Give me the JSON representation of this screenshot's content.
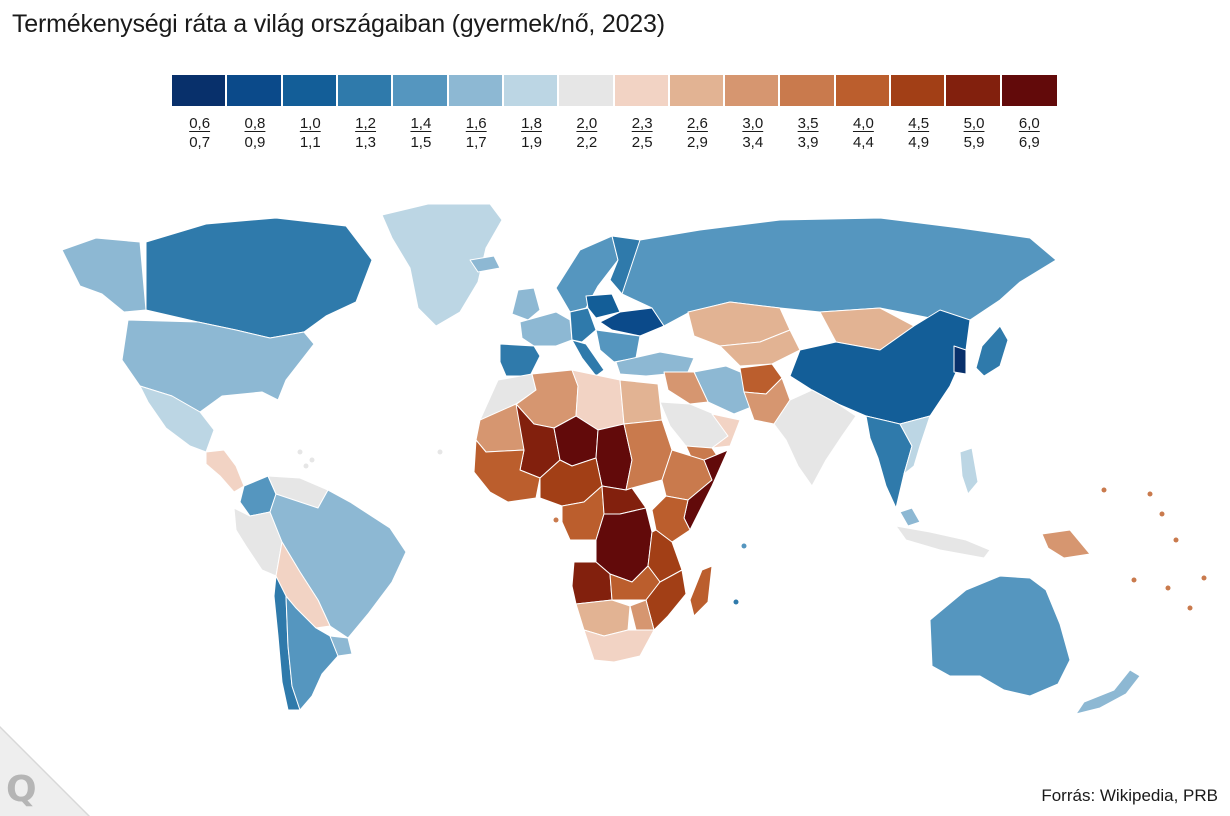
{
  "title": "Termékenységi ráta a világ országaiban (gyermek/nő, 2023)",
  "source": "Forrás: Wikipedia, PRB",
  "brand_letter": "Q",
  "legend": [
    {
      "low": "0,6",
      "high": "0,7",
      "color": "#08306b"
    },
    {
      "low": "0,8",
      "high": "0,9",
      "color": "#0b4a8a"
    },
    {
      "low": "1,0",
      "high": "1,1",
      "color": "#135e98"
    },
    {
      "low": "1,2",
      "high": "1,3",
      "color": "#2f7aab"
    },
    {
      "low": "1,4",
      "high": "1,5",
      "color": "#5596bf"
    },
    {
      "low": "1,6",
      "high": "1,7",
      "color": "#8db8d3"
    },
    {
      "low": "1,8",
      "high": "1,9",
      "color": "#bcd6e4"
    },
    {
      "low": "2,0",
      "high": "2,2",
      "color": "#e6e6e6"
    },
    {
      "low": "2,3",
      "high": "2,5",
      "color": "#f2d3c4"
    },
    {
      "low": "2,6",
      "high": "2,9",
      "color": "#e2b393"
    },
    {
      "low": "3,0",
      "high": "3,4",
      "color": "#d69670"
    },
    {
      "low": "3,5",
      "high": "3,9",
      "color": "#c97a4d"
    },
    {
      "low": "4,0",
      "high": "4,4",
      "color": "#bb5e2d"
    },
    {
      "low": "4,5",
      "high": "4,9",
      "color": "#a23f16"
    },
    {
      "low": "5,0",
      "high": "5,9",
      "color": "#82200d"
    },
    {
      "low": "6,0",
      "high": "6,9",
      "color": "#620a0a"
    }
  ],
  "regions": [
    {
      "name": "Greenland",
      "bin": 6
    },
    {
      "name": "Alaska",
      "bin": 5
    },
    {
      "name": "Canada",
      "bin": 3
    },
    {
      "name": "United States",
      "bin": 5
    },
    {
      "name": "Mexico",
      "bin": 6
    },
    {
      "name": "Central America",
      "bin": 8
    },
    {
      "name": "Colombia",
      "bin": 4
    },
    {
      "name": "Venezuela",
      "bin": 7
    },
    {
      "name": "Ecuador and Peru",
      "bin": 7
    },
    {
      "name": "Brazil",
      "bin": 5
    },
    {
      "name": "Bolivia and Paraguay",
      "bin": 8
    },
    {
      "name": "Chile",
      "bin": 3
    },
    {
      "name": "Argentina",
      "bin": 4
    },
    {
      "name": "Uruguay",
      "bin": 5
    },
    {
      "name": "Iceland",
      "bin": 5
    },
    {
      "name": "Scandinavia",
      "bin": 4
    },
    {
      "name": "Finland",
      "bin": 3
    },
    {
      "name": "United Kingdom and Ireland",
      "bin": 5
    },
    {
      "name": "Western Europe",
      "bin": 5
    },
    {
      "name": "Iberia",
      "bin": 3
    },
    {
      "name": "Central Europe",
      "bin": 3
    },
    {
      "name": "Poland",
      "bin": 2
    },
    {
      "name": "Ukraine",
      "bin": 1
    },
    {
      "name": "Italy",
      "bin": 3
    },
    {
      "name": "Balkans",
      "bin": 4
    },
    {
      "name": "Turkey",
      "bin": 5
    },
    {
      "name": "Russia",
      "bin": 4
    },
    {
      "name": "Kazakhstan",
      "bin": 9
    },
    {
      "name": "Mongolia",
      "bin": 9
    },
    {
      "name": "Central Asia",
      "bin": 9
    },
    {
      "name": "China",
      "bin": 2
    },
    {
      "name": "Korea",
      "bin": 0
    },
    {
      "name": "Japan",
      "bin": 3
    },
    {
      "name": "Iran",
      "bin": 5
    },
    {
      "name": "Iraq and Syria",
      "bin": 10
    },
    {
      "name": "Saudi Arabia",
      "bin": 7
    },
    {
      "name": "Yemen",
      "bin": 11
    },
    {
      "name": "Oman",
      "bin": 8
    },
    {
      "name": "Afghanistan",
      "bin": 12
    },
    {
      "name": "Pakistan",
      "bin": 10
    },
    {
      "name": "India",
      "bin": 7
    },
    {
      "name": "Southeast Asia mainland",
      "bin": 3
    },
    {
      "name": "Vietnam",
      "bin": 6
    },
    {
      "name": "Malaysia",
      "bin": 5
    },
    {
      "name": "Indonesia",
      "bin": 7
    },
    {
      "name": "Philippines",
      "bin": 6
    },
    {
      "name": "Papua New Guinea",
      "bin": 10
    },
    {
      "name": "Australia",
      "bin": 4
    },
    {
      "name": "New Zealand",
      "bin": 5
    },
    {
      "name": "Morocco and Western Sahara",
      "bin": 7
    },
    {
      "name": "Algeria",
      "bin": 10
    },
    {
      "name": "Libya",
      "bin": 8
    },
    {
      "name": "Egypt",
      "bin": 9
    },
    {
      "name": "Mauritania",
      "bin": 10
    },
    {
      "name": "Mali",
      "bin": 14
    },
    {
      "name": "Niger",
      "bin": 15
    },
    {
      "name": "Chad",
      "bin": 15
    },
    {
      "name": "Sudan",
      "bin": 11
    },
    {
      "name": "Ethiopia",
      "bin": 11
    },
    {
      "name": "Somalia",
      "bin": 15
    },
    {
      "name": "West Africa coast",
      "bin": 12
    },
    {
      "name": "Nigeria",
      "bin": 13
    },
    {
      "name": "Cameroon and Gabon",
      "bin": 12
    },
    {
      "name": "Central African Republic",
      "bin": 14
    },
    {
      "name": "DR Congo",
      "bin": 15
    },
    {
      "name": "Kenya",
      "bin": 12
    },
    {
      "name": "Tanzania",
      "bin": 13
    },
    {
      "name": "Angola",
      "bin": 14
    },
    {
      "name": "Zambia and Malawi",
      "bin": 12
    },
    {
      "name": "Mozambique",
      "bin": 13
    },
    {
      "name": "Madagascar",
      "bin": 12
    },
    {
      "name": "Namibia and Botswana",
      "bin": 9
    },
    {
      "name": "South Africa",
      "bin": 8
    },
    {
      "name": "Zimbabwe",
      "bin": 10
    }
  ]
}
